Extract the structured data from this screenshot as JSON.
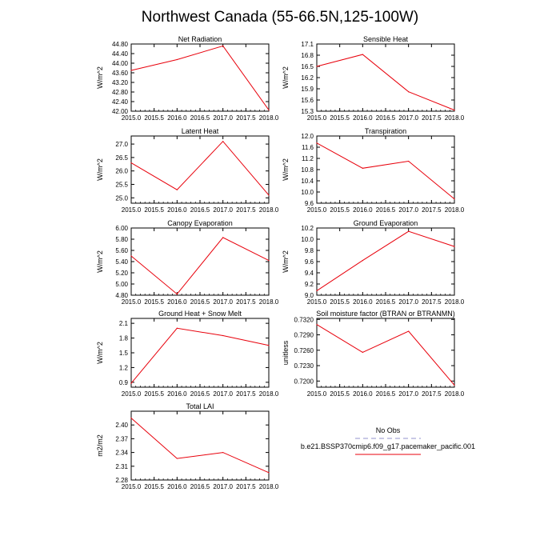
{
  "page": {
    "title": "Northwest Canada (55-66.5N,125-100W)"
  },
  "legend": {
    "entries": [
      {
        "label": "No Obs",
        "color": "#a9a9d6",
        "dash": true
      },
      {
        "label": "b.e21.BSSP370cmip6.f09_g17.pacemaker_pacific.001",
        "color": "#e8000b",
        "dash": false
      }
    ]
  },
  "colors": {
    "series": "#e8000b",
    "axis": "#000000"
  },
  "chart_data": [
    {
      "type": "line",
      "title": "Net Radiation",
      "ylabel": "W/m^2",
      "xlabel": "",
      "x": [
        2015.0,
        2016.0,
        2017.0,
        2018.0
      ],
      "series": [
        {
          "values": [
            43.7,
            44.15,
            44.72,
            42.05
          ]
        }
      ],
      "xlim": [
        2015.0,
        2018.0
      ],
      "ylim": [
        42.0,
        44.8
      ],
      "xticks": [
        "2015.0",
        "2015.5",
        "2016.0",
        "2016.5",
        "2017.0",
        "2017.5",
        "2018.0"
      ],
      "yticks": [
        "42.00",
        "42.40",
        "42.80",
        "43.20",
        "43.60",
        "44.00",
        "44.40",
        "44.80"
      ]
    },
    {
      "type": "line",
      "title": "Sensible Heat",
      "ylabel": "W/m^2",
      "xlabel": "",
      "x": [
        2015.0,
        2016.0,
        2017.0,
        2018.0
      ],
      "series": [
        {
          "values": [
            16.5,
            16.82,
            15.82,
            15.33
          ]
        }
      ],
      "xlim": [
        2015.0,
        2018.0
      ],
      "ylim": [
        15.3,
        17.1
      ],
      "xticks": [
        "2015.0",
        "2015.5",
        "2016.0",
        "2016.5",
        "2017.0",
        "2017.5",
        "2018.0"
      ],
      "yticks": [
        "15.3",
        "15.6",
        "15.9",
        "16.2",
        "16.5",
        "16.8",
        "17.1"
      ]
    },
    {
      "type": "line",
      "title": "Latent Heat",
      "ylabel": "W/m^2",
      "xlabel": "",
      "x": [
        2015.0,
        2016.0,
        2017.0,
        2018.0
      ],
      "series": [
        {
          "values": [
            26.3,
            25.3,
            27.1,
            25.1
          ]
        }
      ],
      "xlim": [
        2015.0,
        2018.0
      ],
      "ylim": [
        24.8,
        27.3
      ],
      "xticks": [
        "2015.0",
        "2015.5",
        "2016.0",
        "2016.5",
        "2017.0",
        "2017.5",
        "2018.0"
      ],
      "yticks": [
        "25.0",
        "25.5",
        "26.0",
        "26.5",
        "27.0"
      ]
    },
    {
      "type": "line",
      "title": "Transpiration",
      "ylabel": "W/m^2",
      "xlabel": "",
      "x": [
        2015.0,
        2016.0,
        2017.0,
        2018.0
      ],
      "series": [
        {
          "values": [
            11.75,
            10.85,
            11.1,
            9.75
          ]
        }
      ],
      "xlim": [
        2015.0,
        2018.0
      ],
      "ylim": [
        9.6,
        12.0
      ],
      "xticks": [
        "2015.0",
        "2015.5",
        "2016.0",
        "2016.5",
        "2017.0",
        "2017.5",
        "2018.0"
      ],
      "yticks": [
        "9.6",
        "10.0",
        "10.4",
        "10.8",
        "11.2",
        "11.6",
        "12.0"
      ]
    },
    {
      "type": "line",
      "title": "Canopy Evaporation",
      "ylabel": "W/m^2",
      "xlabel": "",
      "x": [
        2015.0,
        2016.0,
        2017.0,
        2018.0
      ],
      "series": [
        {
          "values": [
            5.5,
            4.82,
            5.83,
            5.42
          ]
        }
      ],
      "xlim": [
        2015.0,
        2018.0
      ],
      "ylim": [
        4.8,
        6.0
      ],
      "xticks": [
        "2015.0",
        "2015.5",
        "2016.0",
        "2016.5",
        "2017.0",
        "2017.5",
        "2018.0"
      ],
      "yticks": [
        "4.80",
        "5.00",
        "5.20",
        "5.40",
        "5.60",
        "5.80",
        "6.00"
      ]
    },
    {
      "type": "line",
      "title": "Ground Evaporation",
      "ylabel": "W/m^2",
      "xlabel": "",
      "x": [
        2015.0,
        2016.0,
        2017.0,
        2018.0
      ],
      "series": [
        {
          "values": [
            9.08,
            9.62,
            10.14,
            9.87
          ]
        }
      ],
      "xlim": [
        2015.0,
        2018.0
      ],
      "ylim": [
        9.0,
        10.2
      ],
      "xticks": [
        "2015.0",
        "2015.5",
        "2016.0",
        "2016.5",
        "2017.0",
        "2017.5",
        "2018.0"
      ],
      "yticks": [
        "9.0",
        "9.2",
        "9.4",
        "9.6",
        "9.8",
        "10.0",
        "10.2"
      ]
    },
    {
      "type": "line",
      "title": "Ground Heat + Snow Melt",
      "ylabel": "W/m^2",
      "xlabel": "",
      "x": [
        2015.0,
        2016.0,
        2017.0,
        2018.0
      ],
      "series": [
        {
          "values": [
            0.88,
            2.0,
            1.85,
            1.65
          ]
        }
      ],
      "xlim": [
        2015.0,
        2018.0
      ],
      "ylim": [
        0.8,
        2.2
      ],
      "xticks": [
        "2015.0",
        "2015.5",
        "2016.0",
        "2016.5",
        "2017.0",
        "2017.5",
        "2018.0"
      ],
      "yticks": [
        "0.9",
        "1.2",
        "1.5",
        "1.8",
        "2.1"
      ]
    },
    {
      "type": "line",
      "title": "Soil moisture factor (BTRAN or BTRANMN)",
      "ylabel": "unitless",
      "xlabel": "",
      "x": [
        2015.0,
        2016.0,
        2017.0,
        2018.0
      ],
      "series": [
        {
          "values": [
            0.731,
            0.7256,
            0.7297,
            0.7192
          ]
        }
      ],
      "xlim": [
        2015.0,
        2018.0
      ],
      "ylim": [
        0.7188,
        0.7322
      ],
      "xticks": [
        "2015.0",
        "2015.5",
        "2016.0",
        "2016.5",
        "2017.0",
        "2017.5",
        "2018.0"
      ],
      "yticks": [
        "0.7200",
        "0.7230",
        "0.7260",
        "0.7290",
        "0.7320"
      ]
    },
    {
      "type": "line",
      "title": "Total LAI",
      "ylabel": "m2/m2",
      "xlabel": "",
      "x": [
        2015.0,
        2016.0,
        2017.0,
        2018.0
      ],
      "series": [
        {
          "values": [
            2.415,
            2.327,
            2.34,
            2.296
          ]
        }
      ],
      "xlim": [
        2015.0,
        2018.0
      ],
      "ylim": [
        2.28,
        2.43
      ],
      "xticks": [
        "2015.0",
        "2015.5",
        "2016.0",
        "2016.5",
        "2017.0",
        "2017.5",
        "2018.0"
      ],
      "yticks": [
        "2.28",
        "2.31",
        "2.34",
        "2.37",
        "2.40"
      ]
    }
  ]
}
